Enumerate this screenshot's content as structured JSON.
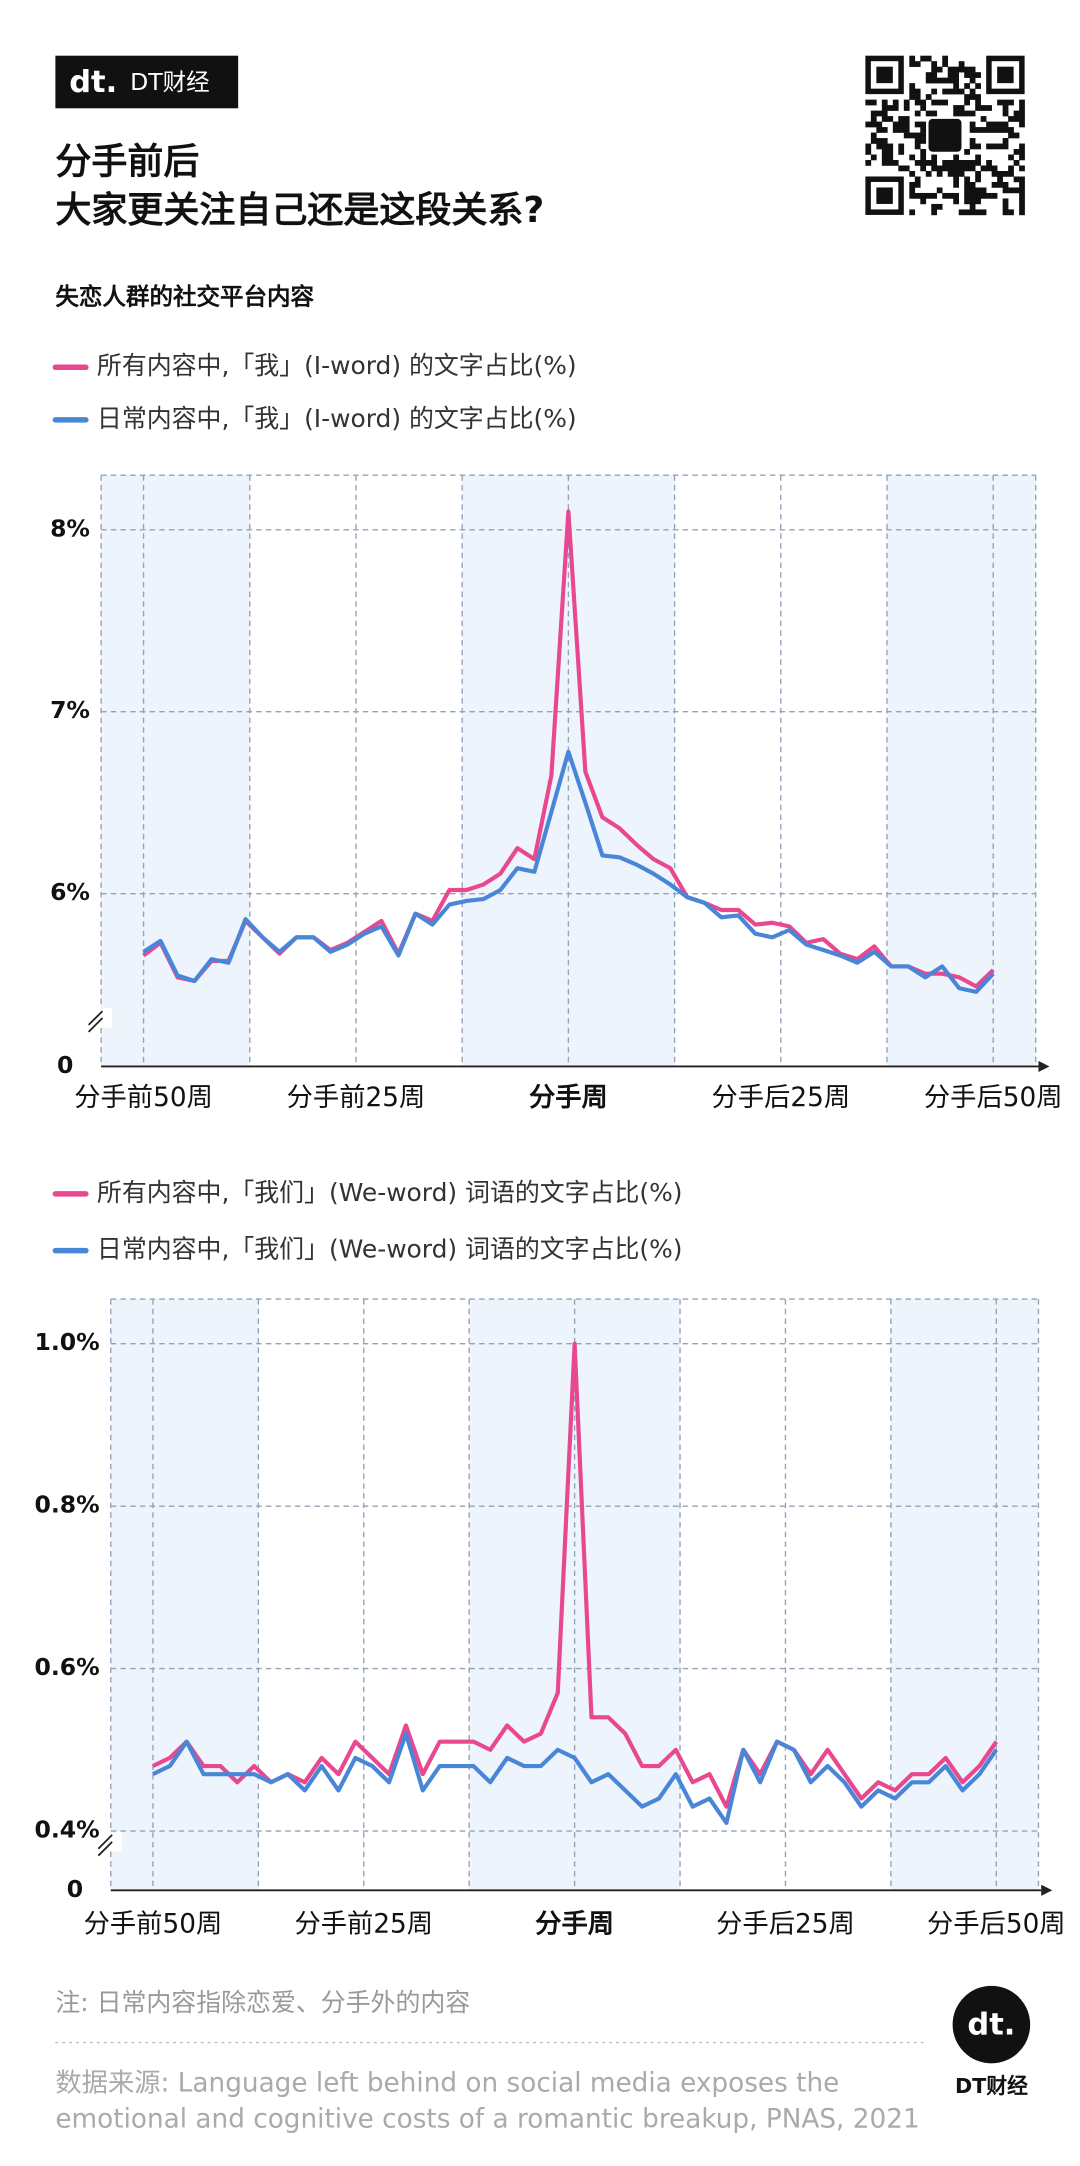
{
  "header": {
    "logo_mark": "dt.",
    "logo_text": "DT财经",
    "title": [
      "分手前后",
      "大家更关注自己还是这段关系?"
    ],
    "subtitle": "失恋人群的社交平台内容"
  },
  "chart_data": [
    {
      "type": "line",
      "x": [
        -50,
        -48,
        -46,
        -44,
        -42,
        -40,
        -38,
        -36,
        -34,
        -32,
        -30,
        -28,
        -26,
        -24,
        -22,
        -20,
        -18,
        -16,
        -14,
        -12,
        -10,
        -8,
        -6,
        -4,
        -2,
        0,
        2,
        4,
        6,
        8,
        10,
        12,
        14,
        16,
        18,
        20,
        22,
        24,
        26,
        28,
        30,
        32,
        34,
        36,
        38,
        40,
        42,
        44,
        46,
        48,
        50
      ],
      "series": [
        {
          "name": "所有内容中,「我」(I-word) 的文字占比(%)",
          "color": "#e8488f",
          "values": [
            5.66,
            5.73,
            5.54,
            5.52,
            5.63,
            5.63,
            5.85,
            5.76,
            5.67,
            5.76,
            5.76,
            5.69,
            5.73,
            5.79,
            5.85,
            5.67,
            5.89,
            5.85,
            6.02,
            6.02,
            6.05,
            6.11,
            6.25,
            6.19,
            6.65,
            8.1,
            6.67,
            6.42,
            6.36,
            6.27,
            6.19,
            6.14,
            5.98,
            5.95,
            5.91,
            5.91,
            5.83,
            5.84,
            5.82,
            5.73,
            5.75,
            5.67,
            5.64,
            5.71,
            5.6,
            5.6,
            5.56,
            5.56,
            5.54,
            5.49,
            5.58
          ]
        },
        {
          "name": "日常内容中,「我」(I-word) 的文字占比(%)",
          "color": "#4a86d8",
          "values": [
            5.68,
            5.74,
            5.55,
            5.52,
            5.64,
            5.62,
            5.86,
            5.76,
            5.68,
            5.76,
            5.76,
            5.68,
            5.72,
            5.78,
            5.82,
            5.66,
            5.89,
            5.83,
            5.94,
            5.96,
            5.97,
            6.02,
            6.14,
            6.12,
            6.45,
            6.78,
            6.5,
            6.21,
            6.2,
            6.16,
            6.11,
            6.05,
            5.98,
            5.95,
            5.87,
            5.88,
            5.78,
            5.76,
            5.8,
            5.72,
            5.69,
            5.66,
            5.62,
            5.68,
            5.6,
            5.6,
            5.54,
            5.6,
            5.48,
            5.46,
            5.56
          ]
        }
      ],
      "xlim": [
        -55,
        55
      ],
      "xticks": [
        {
          "value": -50,
          "label": "分手前50周"
        },
        {
          "value": -25,
          "label": "分手前25周"
        },
        {
          "value": 0,
          "label": "分手周"
        },
        {
          "value": 25,
          "label": "分手后25周"
        },
        {
          "value": 50,
          "label": "分手后50周"
        }
      ],
      "x_grid": [
        -50,
        -37.5,
        -25,
        -12.5,
        0,
        12.5,
        25,
        37.5,
        50
      ],
      "bands": [
        [
          -55,
          -37.5
        ],
        [
          -12.5,
          12.5
        ],
        [
          37.5,
          55
        ]
      ],
      "ylim": [
        5.05,
        8.3
      ],
      "yticks": [
        {
          "value": 6,
          "label": "6%"
        },
        {
          "value": 7,
          "label": "7%"
        },
        {
          "value": 8,
          "label": "8%"
        }
      ],
      "axis_break_label": "0",
      "grid": true
    },
    {
      "type": "line",
      "x": [
        -50,
        -48,
        -46,
        -44,
        -42,
        -40,
        -38,
        -36,
        -34,
        -32,
        -30,
        -28,
        -26,
        -24,
        -22,
        -20,
        -18,
        -16,
        -14,
        -12,
        -10,
        -8,
        -6,
        -4,
        -2,
        0,
        2,
        4,
        6,
        8,
        10,
        12,
        14,
        16,
        18,
        20,
        22,
        24,
        26,
        28,
        30,
        32,
        34,
        36,
        38,
        40,
        42,
        44,
        46,
        48,
        50
      ],
      "series": [
        {
          "name": "所有内容中,「我们」(We-word) 词语的文字占比(%)",
          "color": "#e8488f",
          "values": [
            0.48,
            0.49,
            0.51,
            0.48,
            0.48,
            0.46,
            0.48,
            0.46,
            0.47,
            0.46,
            0.49,
            0.47,
            0.51,
            0.49,
            0.47,
            0.53,
            0.47,
            0.51,
            0.51,
            0.51,
            0.5,
            0.53,
            0.51,
            0.52,
            0.57,
            1.0,
            0.54,
            0.54,
            0.52,
            0.48,
            0.48,
            0.5,
            0.46,
            0.47,
            0.43,
            0.5,
            0.47,
            0.51,
            0.5,
            0.47,
            0.5,
            0.47,
            0.44,
            0.46,
            0.45,
            0.47,
            0.47,
            0.49,
            0.46,
            0.48,
            0.51
          ]
        },
        {
          "name": "日常内容中,「我们」(We-word) 词语的文字占比(%)",
          "color": "#4a86d8",
          "values": [
            0.47,
            0.48,
            0.51,
            0.47,
            0.47,
            0.47,
            0.47,
            0.46,
            0.47,
            0.45,
            0.48,
            0.45,
            0.49,
            0.48,
            0.46,
            0.52,
            0.45,
            0.48,
            0.48,
            0.48,
            0.46,
            0.49,
            0.48,
            0.48,
            0.5,
            0.49,
            0.46,
            0.47,
            0.45,
            0.43,
            0.44,
            0.47,
            0.43,
            0.44,
            0.41,
            0.5,
            0.46,
            0.51,
            0.5,
            0.46,
            0.48,
            0.46,
            0.43,
            0.45,
            0.44,
            0.46,
            0.46,
            0.48,
            0.45,
            0.47,
            0.5
          ]
        }
      ],
      "xlim": [
        -55,
        55
      ],
      "xticks": [
        {
          "value": -50,
          "label": "分手前50周"
        },
        {
          "value": -25,
          "label": "分手前25周"
        },
        {
          "value": 0,
          "label": "分手周"
        },
        {
          "value": 25,
          "label": "分手后25周"
        },
        {
          "value": 50,
          "label": "分手后50周"
        }
      ],
      "x_grid": [
        -50,
        -37.5,
        -25,
        -12.5,
        0,
        12.5,
        25,
        37.5,
        50
      ],
      "bands": [
        [
          -55,
          -37.5
        ],
        [
          -12.5,
          12.5
        ],
        [
          37.5,
          55
        ]
      ],
      "ylim": [
        0.327,
        1.055
      ],
      "yticks": [
        {
          "value": 0.4,
          "label": "0.4%"
        },
        {
          "value": 0.6,
          "label": "0.6%"
        },
        {
          "value": 0.8,
          "label": "0.8%"
        },
        {
          "value": 1.0,
          "label": "1.0%"
        }
      ],
      "axis_break_label": "0",
      "grid": true
    }
  ],
  "footer": {
    "note": "注: 日常内容指除恋爱、分手外的内容",
    "source": [
      "数据来源: Language left behind on social media exposes the",
      "emotional and cognitive costs of a romantic breakup, PNAS, 2021"
    ],
    "logo_mark": "dt.",
    "logo_text": "DT财经"
  }
}
